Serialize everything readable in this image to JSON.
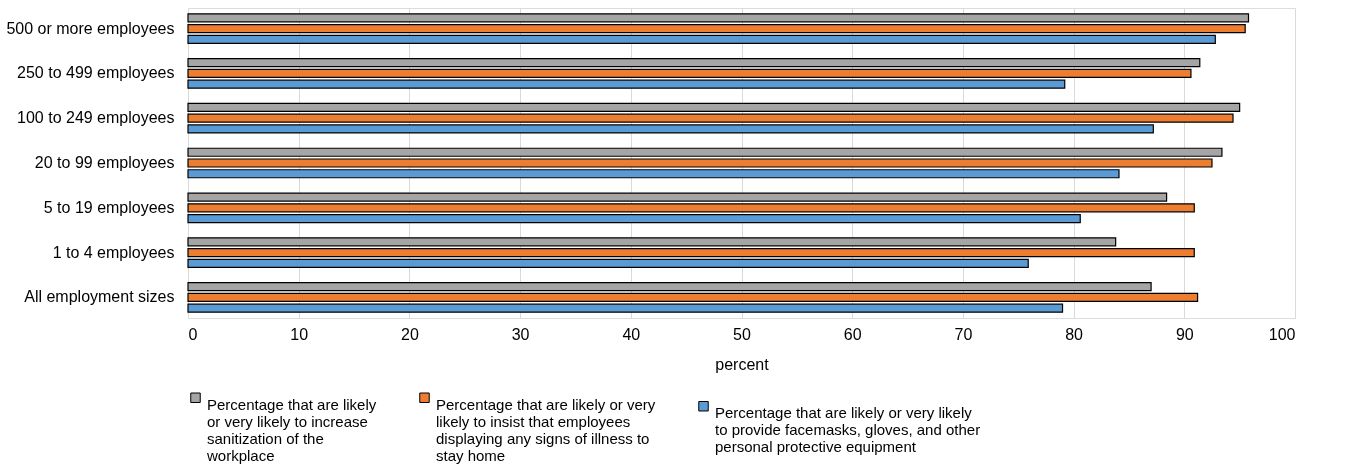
{
  "chart_data": {
    "type": "bar",
    "orientation": "horizontal",
    "xlabel": "percent",
    "categories": [
      "500 or more employees",
      "250 to 499 employees",
      "100 to 249 employees",
      "20 to 99 employees",
      "5 to 19 employees",
      "1 to 4 employees",
      "All employment sizes"
    ],
    "series": [
      {
        "name": "Percentage that are likely or very likely to increase sanitization of the workplace",
        "color": "#a5a5a5",
        "values": [
          95.8,
          91.4,
          95.0,
          93.4,
          88.4,
          83.8,
          87.0
        ]
      },
      {
        "name": "Percentage that are likely or very likely to insist that employees displaying any signs of illness to stay home",
        "color": "#ed7d31",
        "values": [
          95.5,
          90.6,
          94.4,
          92.5,
          90.9,
          90.9,
          91.2
        ]
      },
      {
        "name": "Percentage that are likely or very likely to provide facemasks, gloves, and other personal protective equipment",
        "color": "#5b9bd5",
        "values": [
          92.8,
          79.2,
          87.2,
          84.1,
          80.6,
          75.9,
          79.0
        ]
      }
    ],
    "xlim": [
      0,
      100
    ],
    "xticks": [
      0,
      10,
      20,
      30,
      40,
      50,
      60,
      70,
      80,
      90,
      100
    ],
    "grid": "x",
    "legend": "bottom"
  }
}
